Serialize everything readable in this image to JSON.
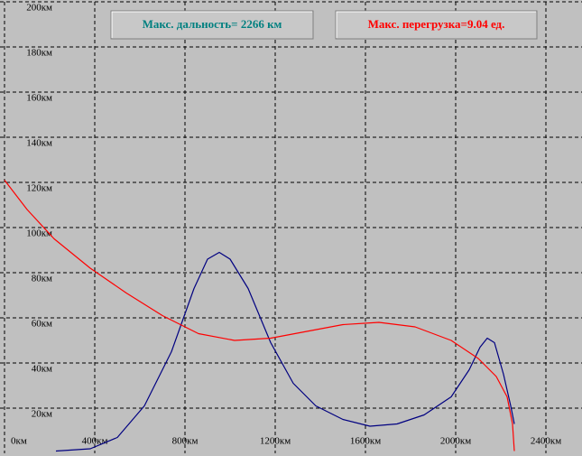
{
  "chart_data": {
    "type": "line",
    "annotations": [
      {
        "text": "Макс. дальность= 2266 км",
        "color": "#008080"
      },
      {
        "text": "Макс. перегрузка=9.04 ед.",
        "color": "#ff0000"
      }
    ],
    "xlim": [
      -20,
      2560
    ],
    "ylim": [
      0,
      200
    ],
    "xticks": [
      {
        "value": 0,
        "label": "0км"
      },
      {
        "value": 400,
        "label": "400км"
      },
      {
        "value": 800,
        "label": "800км"
      },
      {
        "value": 1200,
        "label": "1200км"
      },
      {
        "value": 1600,
        "label": "1600км"
      },
      {
        "value": 2000,
        "label": "2000км"
      },
      {
        "value": 2400,
        "label": "2400км"
      }
    ],
    "yticks": [
      {
        "value": 20,
        "label": "20км"
      },
      {
        "value": 40,
        "label": "40км"
      },
      {
        "value": 60,
        "label": "60км"
      },
      {
        "value": 80,
        "label": "80км"
      },
      {
        "value": 100,
        "label": "100км"
      },
      {
        "value": 120,
        "label": "120км"
      },
      {
        "value": 140,
        "label": "140км"
      },
      {
        "value": 160,
        "label": "160км"
      },
      {
        "value": 180,
        "label": "180км"
      },
      {
        "value": 200,
        "label": "200км"
      }
    ],
    "grid": true,
    "series": [
      {
        "color": "#000080",
        "x": [
          228,
          380,
          500,
          620,
          740,
          840,
          900,
          952,
          1000,
          1080,
          1180,
          1280,
          1380,
          1500,
          1620,
          1740,
          1860,
          1980,
          2060,
          2108,
          2140,
          2172,
          2212,
          2244,
          2260
        ],
        "values": [
          1,
          2,
          7,
          21,
          45,
          73,
          86,
          89,
          86,
          73,
          49,
          31,
          21,
          15,
          12,
          13,
          17,
          25,
          37,
          47,
          51,
          49,
          35,
          21,
          13
        ]
      },
      {
        "color": "#ff0000",
        "x": [
          0,
          100,
          220,
          380,
          540,
          700,
          860,
          1020,
          1180,
          1340,
          1500,
          1660,
          1820,
          1980,
          2100,
          2180,
          2228,
          2252,
          2260
        ],
        "values": [
          121,
          108,
          95,
          82,
          71,
          61,
          53,
          50,
          51,
          54,
          57,
          58,
          56,
          50,
          42,
          34,
          25,
          13,
          1
        ]
      }
    ]
  }
}
